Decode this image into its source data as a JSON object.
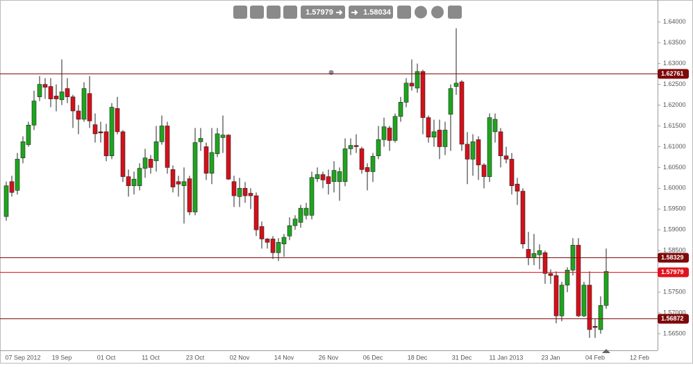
{
  "toolbar": {
    "prices": [
      "1.57979",
      "1.58034"
    ]
  },
  "chart_data": {
    "type": "candlestick",
    "categories": [
      null,
      null,
      null,
      "07 Sep 2012",
      null,
      null,
      null,
      null,
      null,
      null,
      "19 Sep",
      null,
      null,
      null,
      null,
      null,
      null,
      null,
      "01 Oct",
      null,
      null,
      null,
      null,
      null,
      null,
      null,
      "11 Oct",
      null,
      null,
      null,
      null,
      null,
      null,
      null,
      "23 Oct",
      null,
      null,
      null,
      null,
      null,
      null,
      null,
      "02 Nov",
      null,
      null,
      null,
      null,
      null,
      null,
      null,
      "14 Nov",
      null,
      null,
      null,
      null,
      null,
      null,
      null,
      "26 Nov",
      null,
      null,
      null,
      null,
      null,
      null,
      null,
      "06 Dec",
      null,
      null,
      null,
      null,
      null,
      null,
      null,
      "18 Dec",
      null,
      null,
      null,
      null,
      null,
      null,
      null,
      "31 Dec",
      null,
      null,
      null,
      null,
      null,
      null,
      null,
      "11 Jan 2013",
      null,
      null,
      null,
      null,
      null,
      null,
      null,
      "23 Jan",
      null,
      null,
      null,
      null,
      null,
      null,
      null,
      "04 Feb",
      null,
      null,
      null,
      null,
      null,
      null,
      null,
      "12 Feb"
    ],
    "open": [
      1.5932,
      1.6016,
      1.5995,
      1.6073,
      1.6105,
      1.6152,
      1.622,
      1.625,
      1.6245,
      1.6222,
      1.6213,
      1.624,
      1.622,
      1.6186,
      1.6166,
      1.6228,
      1.6153,
      1.6136,
      1.6136,
      1.6078,
      1.6192,
      1.6136,
      1.6028,
      1.6006,
      1.6006,
      1.6048,
      1.607,
      1.6066,
      1.6112,
      1.615,
      1.6045,
      1.6016,
      1.6006,
      1.6023,
      1.5943,
      1.6112,
      1.61,
      1.6036,
      1.6083,
      1.6122,
      1.6128,
      1.6016,
      1.598,
      1.6,
      1.5988,
      1.5982,
      1.5908,
      1.5878,
      1.5878,
      1.5845,
      1.5866,
      1.5885,
      1.591,
      1.5918,
      1.5935,
      1.5935,
      1.6023,
      1.6033,
      1.6028,
      1.6016,
      1.6016,
      1.6016,
      1.6095,
      1.6103,
      1.6095,
      1.605,
      1.604,
      1.6078,
      1.6117,
      1.6145,
      1.6115,
      1.6173,
      1.6207,
      1.6253,
      1.6241,
      1.6281,
      1.617,
      1.6123,
      1.614,
      1.61,
      1.6178,
      1.6245,
      1.6256,
      1.6106,
      1.607,
      1.6117,
      1.6056,
      1.6028,
      1.6136,
      1.6136,
      1.6078,
      1.607,
      1.601,
      1.5993,
      1.5853,
      1.5833,
      1.584,
      1.5845,
      1.5795,
      1.579,
      1.5693,
      1.5767,
      1.5803,
      1.5863,
      1.5693,
      1.5767,
      1.5668,
      1.566,
      1.5718,
      null,
      null,
      null,
      null,
      null,
      null
    ],
    "high": [
      1.6016,
      1.603,
      1.6085,
      1.6125,
      1.616,
      1.6235,
      1.627,
      1.6265,
      1.6265,
      1.625,
      1.631,
      1.6265,
      1.6225,
      1.62,
      1.6255,
      1.627,
      1.618,
      1.616,
      1.6155,
      1.6205,
      1.622,
      1.614,
      1.6045,
      1.604,
      1.606,
      1.6095,
      1.608,
      1.615,
      1.6175,
      1.616,
      1.6055,
      1.603,
      1.605,
      1.603,
      1.6145,
      1.6145,
      1.611,
      1.6145,
      1.6145,
      1.6175,
      1.613,
      1.603,
      1.6025,
      1.6015,
      1.6,
      1.599,
      1.592,
      1.588,
      1.5885,
      1.588,
      1.589,
      1.593,
      1.5935,
      1.596,
      1.5965,
      1.604,
      1.605,
      1.604,
      1.6045,
      1.6065,
      1.605,
      1.612,
      1.612,
      1.613,
      1.61,
      1.606,
      1.6085,
      1.615,
      1.617,
      1.615,
      1.618,
      1.622,
      1.6265,
      1.631,
      1.63,
      1.6285,
      1.6175,
      1.6165,
      1.6165,
      1.616,
      1.625,
      1.6385,
      1.626,
      1.6135,
      1.613,
      1.6125,
      1.606,
      1.618,
      1.618,
      1.6145,
      1.61,
      1.6085,
      1.6025,
      1.6,
      1.5895,
      1.589,
      1.5865,
      1.585,
      1.5805,
      1.58,
      1.5775,
      1.581,
      1.588,
      1.588,
      1.5775,
      1.58,
      1.5685,
      1.574,
      1.5855,
      null,
      null,
      null,
      null,
      null,
      null
    ],
    "low": [
      1.5922,
      1.598,
      1.5985,
      1.606,
      1.61,
      1.614,
      1.621,
      1.6215,
      1.6195,
      1.6185,
      1.62,
      1.6205,
      1.6145,
      1.613,
      1.616,
      1.6145,
      1.611,
      1.611,
      1.6065,
      1.607,
      1.613,
      1.6015,
      1.598,
      1.5985,
      1.5995,
      1.6025,
      1.6035,
      1.604,
      1.6105,
      1.6035,
      1.599,
      1.598,
      1.5915,
      1.5935,
      1.5935,
      1.609,
      1.602,
      1.601,
      1.6075,
      1.6085,
      1.602,
      1.5955,
      1.5955,
      1.5965,
      1.595,
      1.5885,
      1.5855,
      1.5855,
      1.583,
      1.5825,
      1.5835,
      1.5875,
      1.59,
      1.5905,
      1.5925,
      1.5925,
      1.6015,
      1.6,
      1.5985,
      1.599,
      1.597,
      1.6005,
      1.608,
      1.6085,
      1.6035,
      1.5995,
      1.6015,
      1.607,
      1.61,
      1.609,
      1.611,
      1.616,
      1.6195,
      1.6235,
      1.623,
      1.613,
      1.611,
      1.61,
      1.607,
      1.608,
      1.609,
      1.6225,
      1.609,
      1.601,
      1.603,
      1.602,
      1.6,
      1.6015,
      1.611,
      1.605,
      1.606,
      1.5985,
      1.596,
      1.5855,
      1.5815,
      1.5815,
      1.5805,
      1.577,
      1.577,
      1.5675,
      1.568,
      1.575,
      1.579,
      1.569,
      1.569,
      1.564,
      1.564,
      1.565,
      1.571,
      null,
      null,
      null,
      null,
      null,
      null
    ],
    "close": [
      1.6006,
      1.599,
      1.607,
      1.6112,
      1.6152,
      1.621,
      1.625,
      1.6243,
      1.6215,
      1.6215,
      1.6232,
      1.622,
      1.6186,
      1.6166,
      1.624,
      1.6162,
      1.6131,
      1.6133,
      1.6078,
      1.6195,
      1.6136,
      1.6028,
      1.6006,
      1.6022,
      1.6048,
      1.6073,
      1.605,
      1.6112,
      1.615,
      1.605,
      1.6003,
      1.601,
      1.6016,
      1.5943,
      1.611,
      1.612,
      1.6036,
      1.6086,
      1.6131,
      1.6128,
      1.6022,
      1.5982,
      1.6,
      1.5982,
      1.5982,
      1.59,
      1.5878,
      1.587,
      1.5845,
      1.587,
      1.5882,
      1.591,
      1.5926,
      1.5952,
      1.5952,
      1.6026,
      1.6033,
      1.602,
      1.6011,
      1.6043,
      1.604,
      1.6095,
      1.6103,
      1.61,
      1.6045,
      1.604,
      1.6077,
      1.6117,
      1.6148,
      1.6115,
      1.6173,
      1.6207,
      1.6253,
      1.6246,
      1.6281,
      1.617,
      1.6123,
      1.6136,
      1.61,
      1.614,
      1.624,
      1.6253,
      1.6106,
      1.607,
      1.6112,
      1.6056,
      1.6028,
      1.617,
      1.6166,
      1.6078,
      1.607,
      1.6006,
      1.5993,
      1.5866,
      1.5833,
      1.5843,
      1.585,
      1.5795,
      1.579,
      1.5693,
      1.5767,
      1.5803,
      1.5863,
      1.5693,
      1.5767,
      1.566,
      1.5665,
      1.5718,
      1.58,
      null,
      null,
      null,
      null,
      null,
      null
    ],
    "up_color": "#1ea51e",
    "down_color": "#d4101a",
    "ylim": [
      1.561,
      1.6453
    ],
    "yticks": [
      {
        "value": 1.565,
        "label": "1.56500"
      },
      {
        "value": 1.57,
        "label": "1.57000"
      },
      {
        "value": 1.575,
        "label": "1.57500"
      },
      {
        "value": 1.58,
        "label": "1.58000"
      },
      {
        "value": 1.585,
        "label": "1.58500"
      },
      {
        "value": 1.59,
        "label": "1.59000"
      },
      {
        "value": 1.595,
        "label": "1.59500"
      },
      {
        "value": 1.6,
        "label": "1.60000"
      },
      {
        "value": 1.605,
        "label": "1.60500"
      },
      {
        "value": 1.61,
        "label": "1.61000"
      },
      {
        "value": 1.615,
        "label": "1.61500"
      },
      {
        "value": 1.62,
        "label": "1.62000"
      },
      {
        "value": 1.625,
        "label": "1.62500"
      },
      {
        "value": 1.63,
        "label": "1.63000"
      },
      {
        "value": 1.635,
        "label": "1.63500"
      },
      {
        "value": 1.64,
        "label": "1.64000"
      }
    ],
    "grid": false,
    "levels": [
      {
        "value": 1.62761,
        "color": "#7d0a0a"
      },
      {
        "value": 1.58329,
        "color": "#7d0a0a"
      },
      {
        "value": 1.57979,
        "color": "#e0141e"
      },
      {
        "value": 1.56872,
        "color": "#7d0a0a"
      }
    ]
  }
}
